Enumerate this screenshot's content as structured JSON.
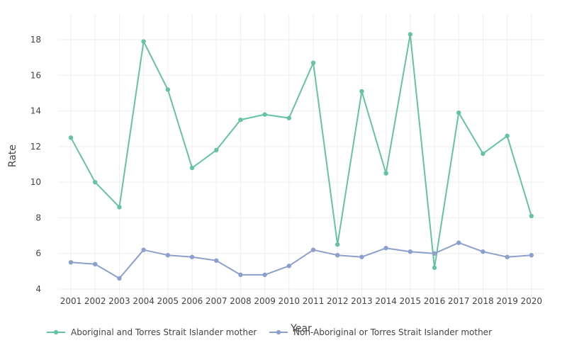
{
  "chart_data": {
    "type": "line",
    "xlabel": "Year",
    "ylabel": "Rate",
    "ylim": [
      4,
      19.2
    ],
    "yticks": [
      4,
      6,
      8,
      10,
      12,
      14,
      16,
      18
    ],
    "grid": true,
    "legend_position": "bottom",
    "categories": [
      "2001",
      "2002",
      "2003",
      "2004",
      "2005",
      "2006",
      "2007",
      "2008",
      "2009",
      "2010",
      "2011",
      "2012",
      "2013",
      "2014",
      "2015",
      "2016",
      "2017",
      "2018",
      "2019",
      "2020"
    ],
    "series": [
      {
        "name": "Aboriginal and Torres Strait Islander mother",
        "color": "#66c2a5",
        "values": [
          12.5,
          10.0,
          8.6,
          17.9,
          15.2,
          10.8,
          11.8,
          13.5,
          13.8,
          13.6,
          16.7,
          6.5,
          15.1,
          10.5,
          18.3,
          5.2,
          13.9,
          11.6,
          12.6,
          8.1
        ]
      },
      {
        "name": "Non-Aboriginal or Torres Strait Islander mother",
        "color": "#8da0cb",
        "values": [
          5.5,
          5.4,
          4.6,
          6.2,
          5.9,
          5.8,
          5.6,
          4.8,
          4.8,
          5.3,
          6.2,
          5.9,
          5.8,
          6.3,
          6.1,
          6.0,
          6.6,
          6.1,
          5.8,
          5.9
        ]
      }
    ]
  }
}
